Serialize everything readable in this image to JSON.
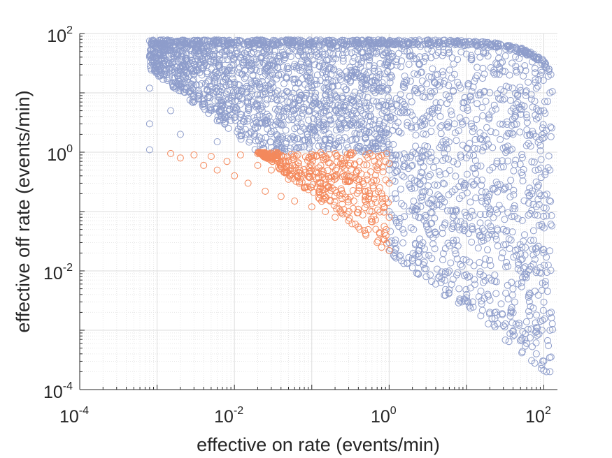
{
  "chart_data": {
    "type": "scatter",
    "title": "",
    "xlabel": "effective on rate (events/min)",
    "ylabel": "effective off rate (events/min)",
    "xscale": "log",
    "yscale": "log",
    "xlim": [
      0.0001,
      150
    ],
    "ylim": [
      0.0001,
      100
    ],
    "grid": "major and minor (log)",
    "legend": "none",
    "marker": "open circle",
    "x_ticks": [
      {
        "base": "10",
        "exp": "-4",
        "value": 0.0001
      },
      {
        "base": "10",
        "exp": "-2",
        "value": 0.01
      },
      {
        "base": "10",
        "exp": "0",
        "value": 1
      },
      {
        "base": "10",
        "exp": "2",
        "value": 100
      }
    ],
    "y_ticks": [
      {
        "base": "10",
        "exp": "-4",
        "value": 0.0001
      },
      {
        "base": "10",
        "exp": "-2",
        "value": 0.01
      },
      {
        "base": "10",
        "exp": "0",
        "value": 1
      },
      {
        "base": "10",
        "exp": "2",
        "value": 100
      }
    ],
    "series": [
      {
        "color": "#8e9dcb",
        "description_region": "points filling region x in [0.0008, 130], y between max(0.02/x, 1 if x<1) and ~75-80",
        "values": [
          [
            0.0008,
            75
          ],
          [
            0.0008,
            40
          ],
          [
            0.0008,
            12
          ],
          [
            0.0008,
            3
          ],
          [
            0.0008,
            1.1
          ],
          [
            0.001,
            60
          ],
          [
            0.0012,
            20
          ],
          [
            0.0015,
            5
          ],
          [
            0.002,
            70
          ],
          [
            0.002,
            2
          ],
          [
            0.003,
            30
          ],
          [
            0.004,
            8
          ],
          [
            0.005,
            75
          ],
          [
            0.006,
            1.5
          ],
          [
            0.008,
            50
          ],
          [
            0.01,
            15
          ],
          [
            0.012,
            3
          ],
          [
            0.015,
            72
          ],
          [
            0.02,
            6
          ],
          [
            0.025,
            25
          ],
          [
            0.03,
            1.2
          ],
          [
            0.04,
            60
          ],
          [
            0.05,
            10
          ],
          [
            0.06,
            2.5
          ],
          [
            0.08,
            40
          ],
          [
            0.1,
            72
          ],
          [
            0.12,
            4
          ],
          [
            0.15,
            18
          ],
          [
            0.2,
            1.3
          ],
          [
            0.25,
            55
          ],
          [
            0.3,
            8
          ],
          [
            0.4,
            30
          ],
          [
            0.5,
            2
          ],
          [
            0.6,
            68
          ],
          [
            0.8,
            12
          ],
          [
            1.0,
            1.0
          ],
          [
            1.0,
            0.5
          ],
          [
            1.0,
            0.1
          ],
          [
            1.0,
            0.03
          ],
          [
            1.1,
            40
          ],
          [
            1.2,
            0.2
          ],
          [
            1.5,
            5
          ],
          [
            1.5,
            0.05
          ],
          [
            2,
            0.6
          ],
          [
            2,
            65
          ],
          [
            2,
            0.015
          ],
          [
            3,
            2
          ],
          [
            3,
            0.08
          ],
          [
            4,
            20
          ],
          [
            4,
            0.006
          ],
          [
            5,
            0.3
          ],
          [
            5,
            60
          ],
          [
            6,
            0.01
          ],
          [
            7,
            3
          ],
          [
            8,
            0.005
          ],
          [
            10,
            0.8
          ],
          [
            10,
            45
          ],
          [
            12,
            0.003
          ],
          [
            15,
            0.04
          ],
          [
            15,
            10
          ],
          [
            20,
            0.002
          ],
          [
            20,
            0.5
          ],
          [
            25,
            30
          ],
          [
            30,
            0.0012
          ],
          [
            30,
            0.05
          ],
          [
            40,
            0.0008
          ],
          [
            40,
            2
          ],
          [
            50,
            0.01
          ],
          [
            50,
            25
          ],
          [
            60,
            0.0006
          ],
          [
            70,
            0.2
          ],
          [
            80,
            0.0004
          ],
          [
            80,
            12
          ],
          [
            100,
            0.0003
          ],
          [
            100,
            0.02
          ],
          [
            100,
            5
          ],
          [
            120,
            0.0002
          ],
          [
            120,
            0.001
          ],
          [
            120,
            0.5
          ],
          [
            120,
            10
          ]
        ]
      },
      {
        "color": "#f4895c",
        "description_region": "points in x in [0.0015, 1], y between 0.02/x and 1",
        "values": [
          [
            0.0015,
            0.95
          ],
          [
            0.002,
            0.8
          ],
          [
            0.003,
            0.9
          ],
          [
            0.004,
            0.6
          ],
          [
            0.005,
            0.85
          ],
          [
            0.006,
            0.5
          ],
          [
            0.008,
            0.7
          ],
          [
            0.01,
            0.4
          ],
          [
            0.012,
            0.9
          ],
          [
            0.015,
            0.3
          ],
          [
            0.02,
            0.6
          ],
          [
            0.02,
            0.95
          ],
          [
            0.025,
            0.22
          ],
          [
            0.03,
            0.5
          ],
          [
            0.035,
            0.8
          ],
          [
            0.04,
            0.18
          ],
          [
            0.05,
            0.35
          ],
          [
            0.05,
            0.7
          ],
          [
            0.06,
            0.15
          ],
          [
            0.07,
            0.5
          ],
          [
            0.08,
            0.25
          ],
          [
            0.1,
            0.12
          ],
          [
            0.1,
            0.6
          ],
          [
            0.12,
            0.3
          ],
          [
            0.15,
            0.1
          ],
          [
            0.15,
            0.85
          ],
          [
            0.2,
            0.08
          ],
          [
            0.2,
            0.4
          ],
          [
            0.25,
            0.2
          ],
          [
            0.3,
            0.07
          ],
          [
            0.3,
            0.6
          ],
          [
            0.35,
            0.15
          ],
          [
            0.4,
            0.055
          ],
          [
            0.4,
            0.35
          ],
          [
            0.5,
            0.04
          ],
          [
            0.5,
            0.9
          ],
          [
            0.6,
            0.1
          ],
          [
            0.7,
            0.03
          ],
          [
            0.7,
            0.5
          ],
          [
            0.8,
            0.025
          ],
          [
            0.8,
            0.2
          ],
          [
            0.9,
            0.7
          ],
          [
            1.0,
            0.022
          ],
          [
            1.0,
            0.08
          ],
          [
            1.0,
            0.3
          ]
        ]
      }
    ]
  }
}
